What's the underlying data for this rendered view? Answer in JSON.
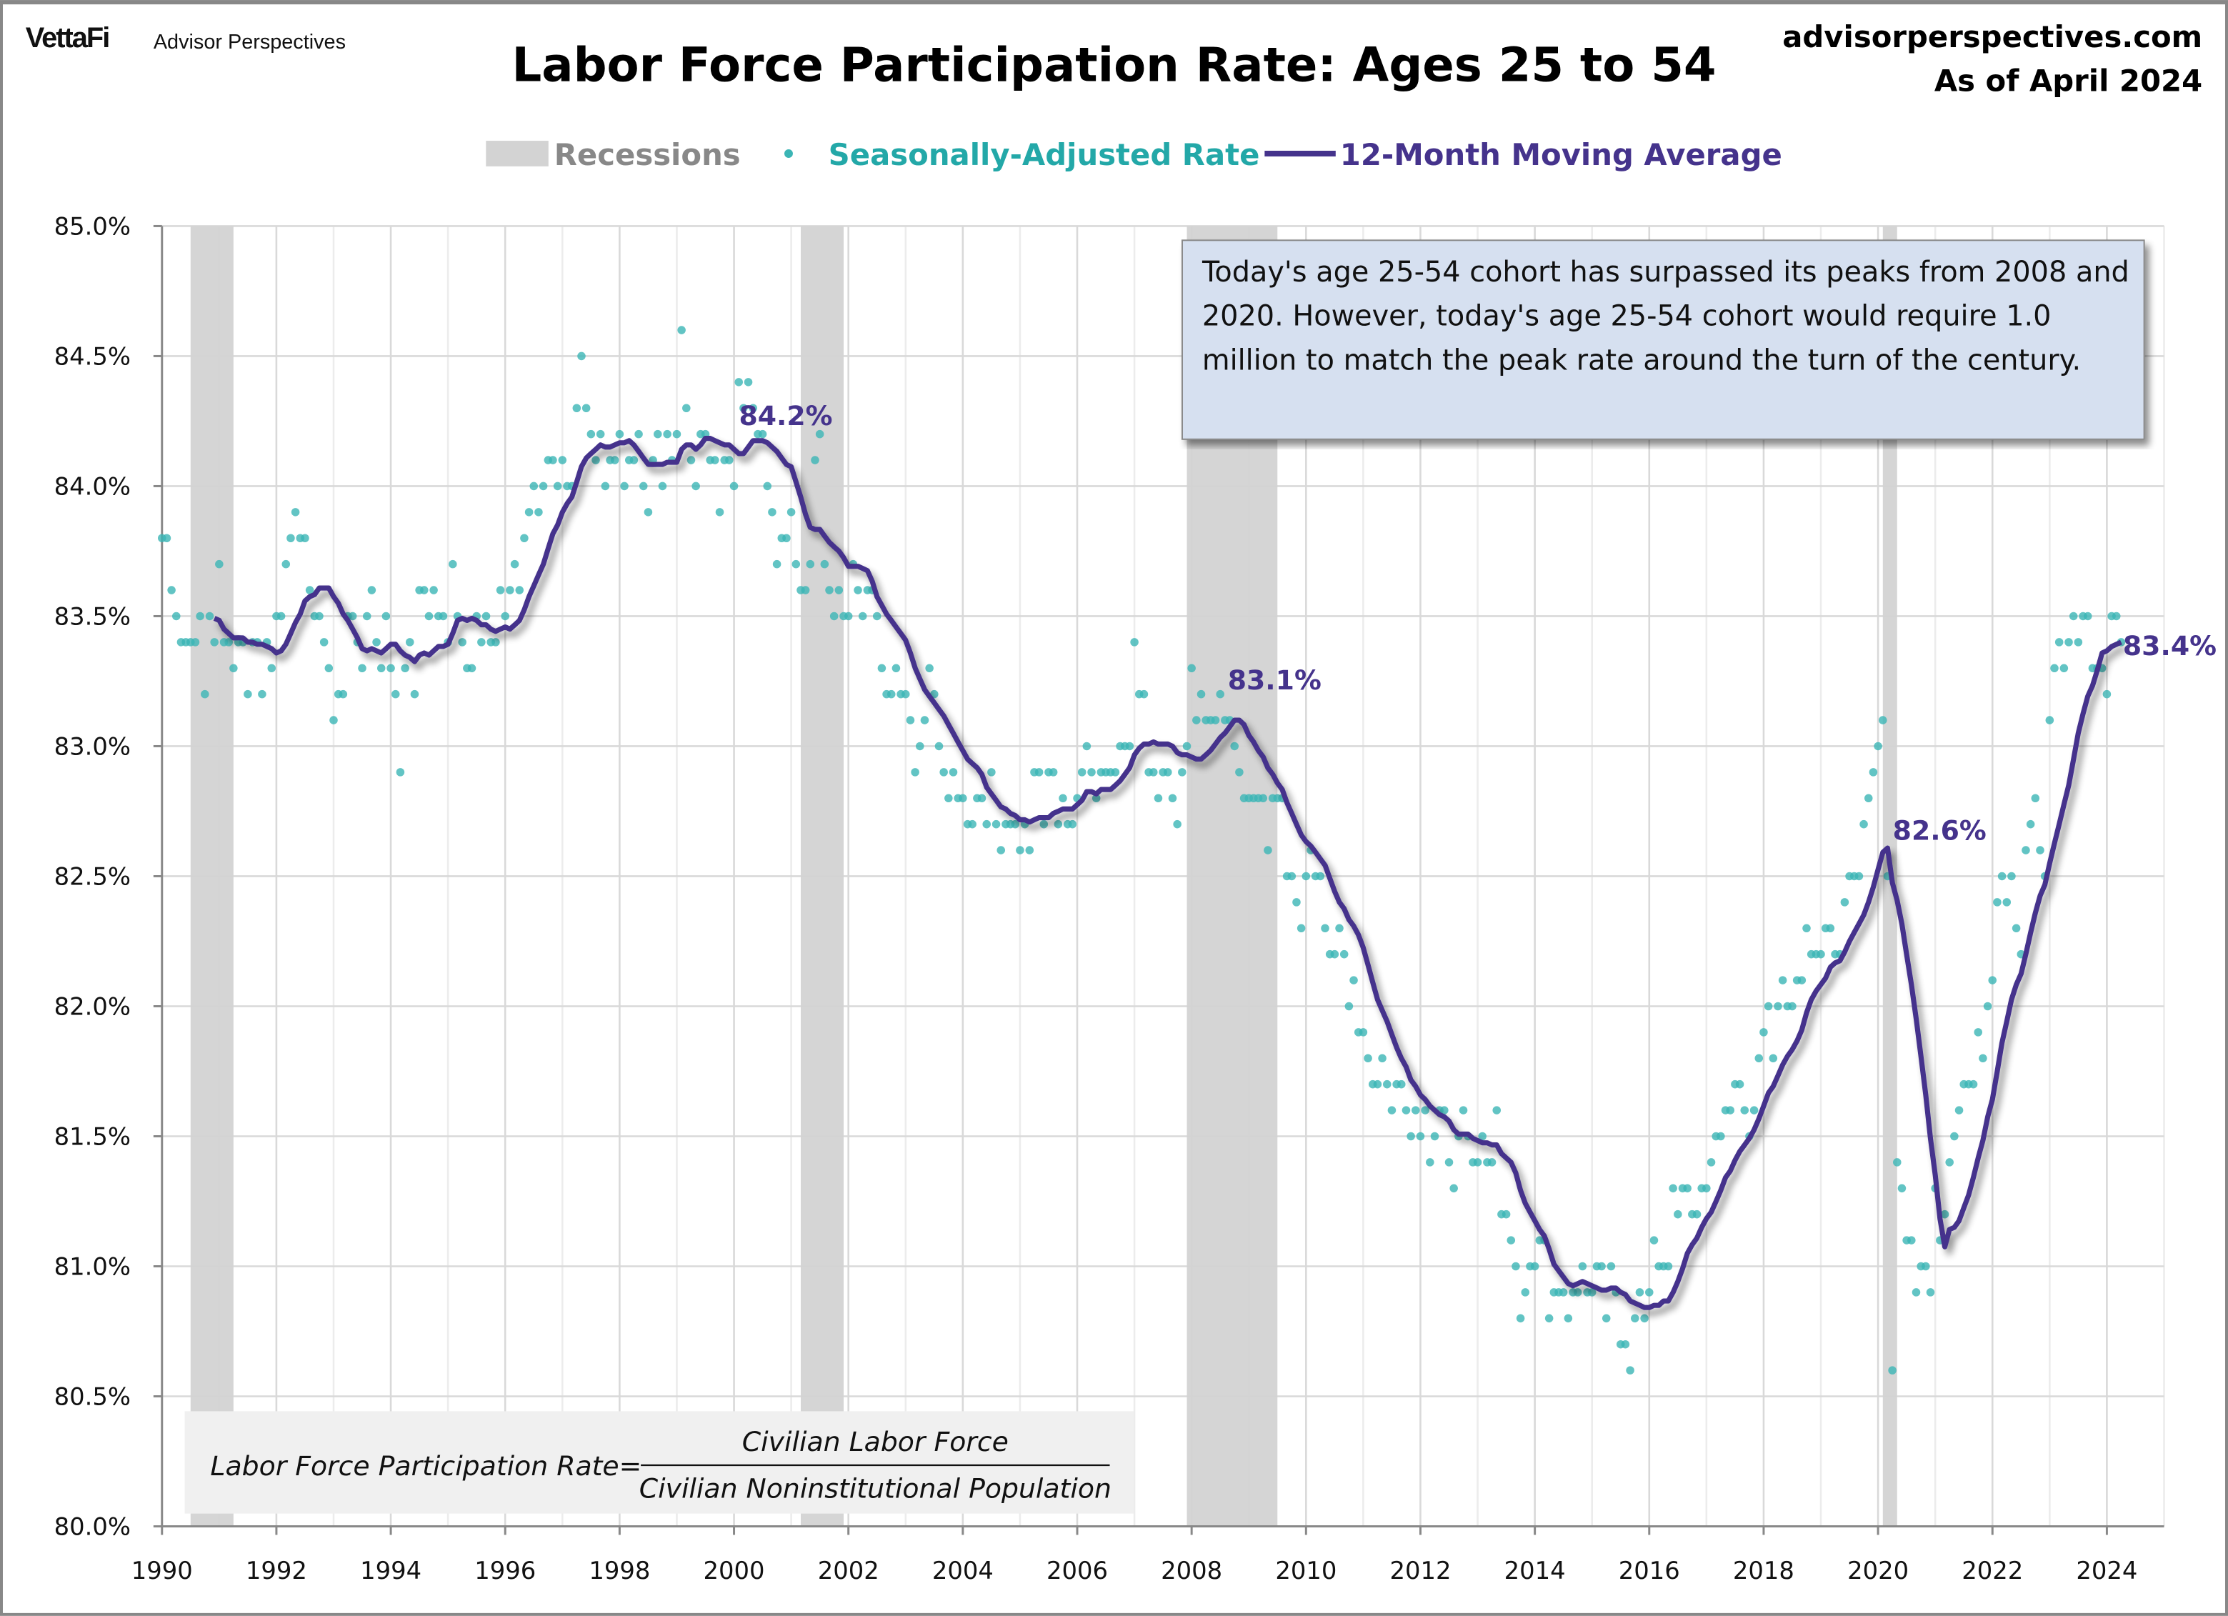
{
  "header": {
    "logo_brand": "VettaFi",
    "logo_sub": "Advisor Perspectives",
    "title": "Labor Force Participation Rate: Ages 25 to 54",
    "site": "advisorperspectives.com",
    "as_of": "As of April 2024"
  },
  "legend": {
    "recessions": "Recessions",
    "rate": "Seasonally-Adjusted Rate",
    "ma": "12-Month Moving Average"
  },
  "colors": {
    "rate": "#3bb5b5",
    "ma": "#45338c",
    "recession": "#d3d3d3",
    "annotation_box": "#d6e0f0"
  },
  "annotation": "Today's age 25-54 cohort has surpassed its peaks from 2008 and 2020. However, today's age 25-54 cohort would require 1.0 million to match the peak rate around the turn of the century.",
  "formula": {
    "lhs": "Labor Force Participation Rate=",
    "numerator": "Civilian Labor Force",
    "denominator": "Civilian Noninstitutional Population"
  },
  "chart_data": {
    "type": "scatter+line",
    "title": "Labor Force Participation Rate: Ages 25 to 54",
    "xlabel": "",
    "ylabel": "",
    "xlim": [
      1990,
      2025
    ],
    "ylim": [
      80.0,
      85.0
    ],
    "grid": true,
    "legend_position": "top",
    "x_ticks": [
      "1990",
      "1992",
      "1994",
      "1996",
      "1998",
      "2000",
      "2002",
      "2004",
      "2006",
      "2008",
      "2010",
      "2012",
      "2014",
      "2016",
      "2018",
      "2020",
      "2022",
      "2024"
    ],
    "y_ticks": [
      "80.0%",
      "80.5%",
      "81.0%",
      "81.5%",
      "82.0%",
      "82.5%",
      "83.0%",
      "83.5%",
      "84.0%",
      "84.5%",
      "85.0%"
    ],
    "recessions": [
      [
        "1990-07",
        "1991-03"
      ],
      [
        "2001-03",
        "2001-11"
      ],
      [
        "2007-12",
        "2009-06"
      ],
      [
        "2020-02",
        "2020-04"
      ]
    ],
    "rate_start": "1990-01",
    "series": [
      {
        "name": "Seasonally-Adjusted Rate",
        "frequency": "monthly",
        "values": [
          83.8,
          83.8,
          83.6,
          83.5,
          83.4,
          83.4,
          83.4,
          83.4,
          83.5,
          83.2,
          83.5,
          83.4,
          83.7,
          83.4,
          83.4,
          83.3,
          83.4,
          83.4,
          83.2,
          83.4,
          83.4,
          83.2,
          83.4,
          83.3,
          83.5,
          83.5,
          83.7,
          83.8,
          83.9,
          83.8,
          83.8,
          83.6,
          83.5,
          83.5,
          83.4,
          83.3,
          83.1,
          83.2,
          83.2,
          83.5,
          83.5,
          83.4,
          83.3,
          83.5,
          83.6,
          83.4,
          83.3,
          83.5,
          83.3,
          83.2,
          82.9,
          83.3,
          83.4,
          83.2,
          83.6,
          83.6,
          83.5,
          83.6,
          83.5,
          83.5,
          83.4,
          83.7,
          83.5,
          83.4,
          83.3,
          83.3,
          83.5,
          83.4,
          83.5,
          83.4,
          83.4,
          83.6,
          83.5,
          83.6,
          83.7,
          83.6,
          83.8,
          83.9,
          84.0,
          83.9,
          84.0,
          84.1,
          84.1,
          84.0,
          84.1,
          84.0,
          84.0,
          84.3,
          84.5,
          84.3,
          84.2,
          84.1,
          84.2,
          84.0,
          84.1,
          84.1,
          84.2,
          84.0,
          84.1,
          84.1,
          84.2,
          84.0,
          83.9,
          84.1,
          84.2,
          84.0,
          84.2,
          84.1,
          84.2,
          84.6,
          84.3,
          84.1,
          84.0,
          84.2,
          84.2,
          84.1,
          84.1,
          83.9,
          84.1,
          84.1,
          84.0,
          84.4,
          84.3,
          84.4,
          84.3,
          84.2,
          84.2,
          84.0,
          83.9,
          83.7,
          83.8,
          83.8,
          83.9,
          83.7,
          83.6,
          83.6,
          83.7,
          84.1,
          84.2,
          83.7,
          83.6,
          83.5,
          83.6,
          83.5,
          83.5,
          83.7,
          83.6,
          83.5,
          83.6,
          83.6,
          83.5,
          83.3,
          83.2,
          83.2,
          83.3,
          83.2,
          83.2,
          83.1,
          82.9,
          83.0,
          83.1,
          83.3,
          83.2,
          83.0,
          82.9,
          82.8,
          82.9,
          82.8,
          82.8,
          82.7,
          82.7,
          82.8,
          82.8,
          82.7,
          82.9,
          82.7,
          82.6,
          82.7,
          82.7,
          82.7,
          82.6,
          82.7,
          82.6,
          82.9,
          82.9,
          82.7,
          82.9,
          82.9,
          82.7,
          82.8,
          82.7,
          82.7,
          82.8,
          82.9,
          83.0,
          82.9,
          82.8,
          82.9,
          82.9,
          82.9,
          82.9,
          83.0,
          83.0,
          83.0,
          83.4,
          83.2,
          83.2,
          82.9,
          82.9,
          82.8,
          82.9,
          82.9,
          82.8,
          82.7,
          82.9,
          83.0,
          83.3,
          83.1,
          83.2,
          83.1,
          83.1,
          83.1,
          83.2,
          83.1,
          83.1,
          83.0,
          82.9,
          82.8,
          82.8,
          82.8,
          82.8,
          82.8,
          82.6,
          82.8,
          82.8,
          82.8,
          82.5,
          82.5,
          82.4,
          82.3,
          82.5,
          82.6,
          82.5,
          82.5,
          82.3,
          82.2,
          82.2,
          82.3,
          82.2,
          82.0,
          82.1,
          81.9,
          81.9,
          81.8,
          81.7,
          81.7,
          81.8,
          81.7,
          81.6,
          81.7,
          81.7,
          81.6,
          81.5,
          81.6,
          81.5,
          81.6,
          81.4,
          81.5,
          81.6,
          81.6,
          81.4,
          81.3,
          81.5,
          81.6,
          81.5,
          81.4,
          81.4,
          81.5,
          81.4,
          81.4,
          81.6,
          81.2,
          81.2,
          81.1,
          81.0,
          80.8,
          80.9,
          81.0,
          81.0,
          81.1,
          81.1,
          80.8,
          80.9,
          80.9,
          80.9,
          80.8,
          80.9,
          80.9,
          81.0,
          80.9,
          80.9,
          81.0,
          81.0,
          80.8,
          81.0,
          80.9,
          80.7,
          80.7,
          80.6,
          80.8,
          80.9,
          80.8,
          80.9,
          81.1,
          81.0,
          81.0,
          81.0,
          81.3,
          81.2,
          81.3,
          81.3,
          81.2,
          81.2,
          81.3,
          81.3,
          81.4,
          81.5,
          81.5,
          81.6,
          81.6,
          81.7,
          81.7,
          81.6,
          81.5,
          81.6,
          81.8,
          81.9,
          82.0,
          81.8,
          82.0,
          82.1,
          82.0,
          82.0,
          82.1,
          82.1,
          82.3,
          82.2,
          82.2,
          82.2,
          82.3,
          82.3,
          82.2,
          82.2,
          82.4,
          82.5,
          82.5,
          82.5,
          82.7,
          82.8,
          82.9,
          83.0,
          83.1,
          82.5,
          80.6,
          81.4,
          81.3,
          81.1,
          81.1,
          80.9,
          81.0,
          81.0,
          80.9,
          81.3,
          81.1,
          81.2,
          81.4,
          81.5,
          81.6,
          81.7,
          81.7,
          81.7,
          81.9,
          81.8,
          82.0,
          82.1,
          82.4,
          82.5,
          82.4,
          82.5,
          82.3,
          82.2,
          82.6,
          82.7,
          82.8,
          82.6,
          82.5,
          83.1,
          83.3,
          83.4,
          83.3,
          83.4,
          83.5,
          83.4,
          83.5,
          83.5,
          83.3,
          83.3,
          83.3,
          83.2,
          83.5,
          83.5,
          83.4
        ]
      },
      {
        "name": "12-Month Moving Average",
        "derived_from": "Seasonally-Adjusted Rate",
        "window_months": 12
      }
    ],
    "annotations": [
      {
        "label": "84.2%",
        "date": "2000-05"
      },
      {
        "label": "83.1%",
        "date": "2008-10"
      },
      {
        "label": "82.6%",
        "date": "2020-03"
      },
      {
        "label": "83.4%",
        "date": "2024-04"
      }
    ]
  }
}
